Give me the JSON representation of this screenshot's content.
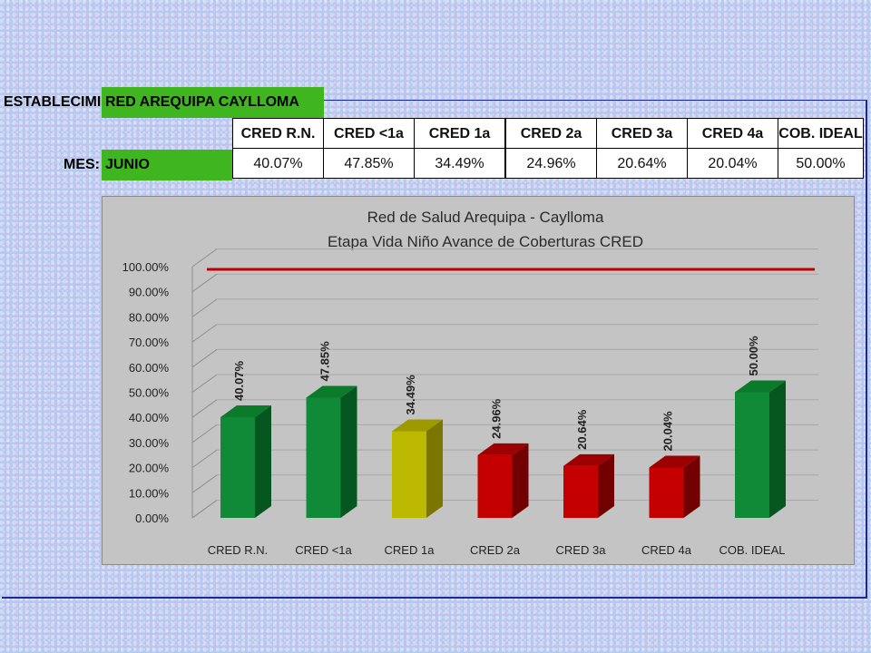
{
  "sheet": {
    "establecimiento_label": "ESTABLECIMIEN",
    "establecimiento_value": "RED AREQUIPA CAYLLOMA",
    "mes_label": "MES:",
    "mes_value": "JUNIO",
    "columns": [
      "CRED R.N.",
      "CRED <1a",
      "CRED 1a",
      "CRED 2a",
      "CRED 3a",
      "CRED 4a",
      "COB. IDEAL"
    ],
    "values": [
      "40.07%",
      "47.85%",
      "34.49%",
      "24.96%",
      "20.64%",
      "20.04%",
      "50.00%"
    ]
  },
  "colors": {
    "green_cell": "#3fb61f",
    "bar_green": "#108a36",
    "bar_yellow": "#bdb800",
    "bar_red": "#c40000",
    "target_line": "#c00000",
    "chart_bg": "#c4c4c4"
  },
  "chart_data": {
    "type": "bar",
    "title": "Red de Salud Arequipa - Caylloma",
    "subtitle": "Etapa Vida Niño Avance de Coberturas CRED",
    "categories": [
      "CRED R.N.",
      "CRED <1a",
      "CRED 1a",
      "CRED 2a",
      "CRED 3a",
      "CRED 4a",
      "COB. IDEAL"
    ],
    "values": [
      40.07,
      47.85,
      34.49,
      24.96,
      20.64,
      20.04,
      50.0
    ],
    "data_labels": [
      "40.07%",
      "47.85%",
      "34.49%",
      "24.96%",
      "20.64%",
      "20.04%",
      "50.00%"
    ],
    "bar_colors": [
      "green",
      "green",
      "yellow",
      "red",
      "red",
      "red",
      "green"
    ],
    "ylim": [
      0,
      100
    ],
    "yticks": [
      "0.00%",
      "10.00%",
      "20.00%",
      "30.00%",
      "40.00%",
      "50.00%",
      "60.00%",
      "70.00%",
      "80.00%",
      "90.00%",
      "100.00%"
    ],
    "reference_line": 100,
    "grid": true,
    "legend": "none",
    "style": "3d"
  }
}
